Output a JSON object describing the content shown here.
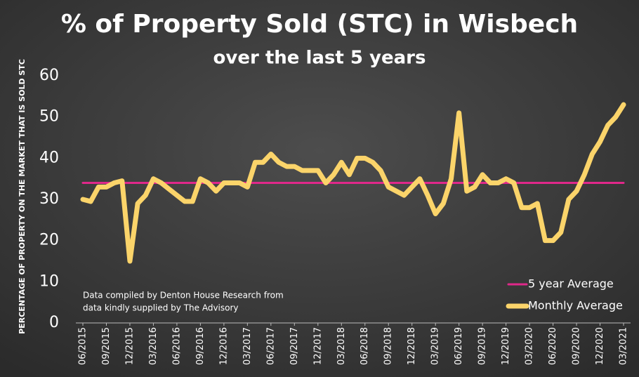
{
  "chart_data": {
    "type": "line",
    "title": "% of Property Sold (STC) in Wisbech",
    "subtitle": "over the last 5 years",
    "y_label": "PERCENTAGE OF PROPERTY ON THE MARKET THAT IS SOLD STC",
    "annotation": [
      "Data compiled by Denton House Research from",
      "data kindly supplied by The Advisory"
    ],
    "categories": [
      "06/2015",
      null,
      null,
      "09/2015",
      null,
      null,
      "12/2015",
      null,
      null,
      "03/2016",
      null,
      null,
      "06/2016",
      null,
      null,
      "09/2016",
      null,
      null,
      "12/2016",
      null,
      null,
      "03/2017",
      null,
      null,
      "06/2017",
      null,
      null,
      "09/2017",
      null,
      null,
      "12/2017",
      null,
      null,
      "03/2018",
      null,
      null,
      "06/2018",
      null,
      null,
      "09/2018",
      null,
      null,
      "12/2018",
      null,
      null,
      "03/2019",
      null,
      null,
      "06/2019",
      null,
      null,
      "09/2019",
      null,
      null,
      "12/2019",
      null,
      null,
      "03/2020",
      null,
      null,
      "06/2020",
      null,
      null,
      "09/2020",
      null,
      null,
      "12/2020",
      null,
      null,
      "03/2021"
    ],
    "series": [
      {
        "name": "5 year Average",
        "color": "#e0288a",
        "width": 3,
        "values": [
          34,
          34,
          34,
          34,
          34,
          34,
          34,
          34,
          34,
          34,
          34,
          34,
          34,
          34,
          34,
          34,
          34,
          34,
          34,
          34,
          34,
          34,
          34,
          34,
          34,
          34,
          34,
          34,
          34,
          34,
          34,
          34,
          34,
          34,
          34,
          34,
          34,
          34,
          34,
          34,
          34,
          34,
          34,
          34,
          34,
          34,
          34,
          34,
          34,
          34,
          34,
          34,
          34,
          34,
          34,
          34,
          34,
          34,
          34,
          34,
          34,
          34,
          34,
          34,
          34,
          34,
          34,
          34,
          34,
          34
        ]
      },
      {
        "name": "Monthly Average",
        "color": "#fbd46a",
        "width": 7,
        "values": [
          30,
          29.5,
          33,
          33,
          34,
          34.5,
          15,
          29,
          31,
          35,
          34,
          32.5,
          31,
          29.5,
          29.5,
          35,
          34,
          32,
          34,
          34,
          34,
          33,
          39,
          39,
          41,
          39,
          38,
          38,
          37,
          37,
          37,
          34,
          36,
          39,
          36,
          40,
          40,
          39,
          37,
          33,
          32,
          31,
          33,
          35,
          31,
          26.5,
          29,
          35,
          51,
          32,
          33,
          36,
          34,
          34,
          35,
          34,
          28,
          28,
          29,
          20,
          20,
          22,
          30,
          32,
          36,
          41,
          44,
          48,
          50,
          53
        ]
      }
    ],
    "ylim": [
      0,
      60
    ],
    "yticks": [
      0,
      10,
      20,
      30,
      40,
      50,
      60
    ],
    "grid": false,
    "legend": "lower right"
  }
}
